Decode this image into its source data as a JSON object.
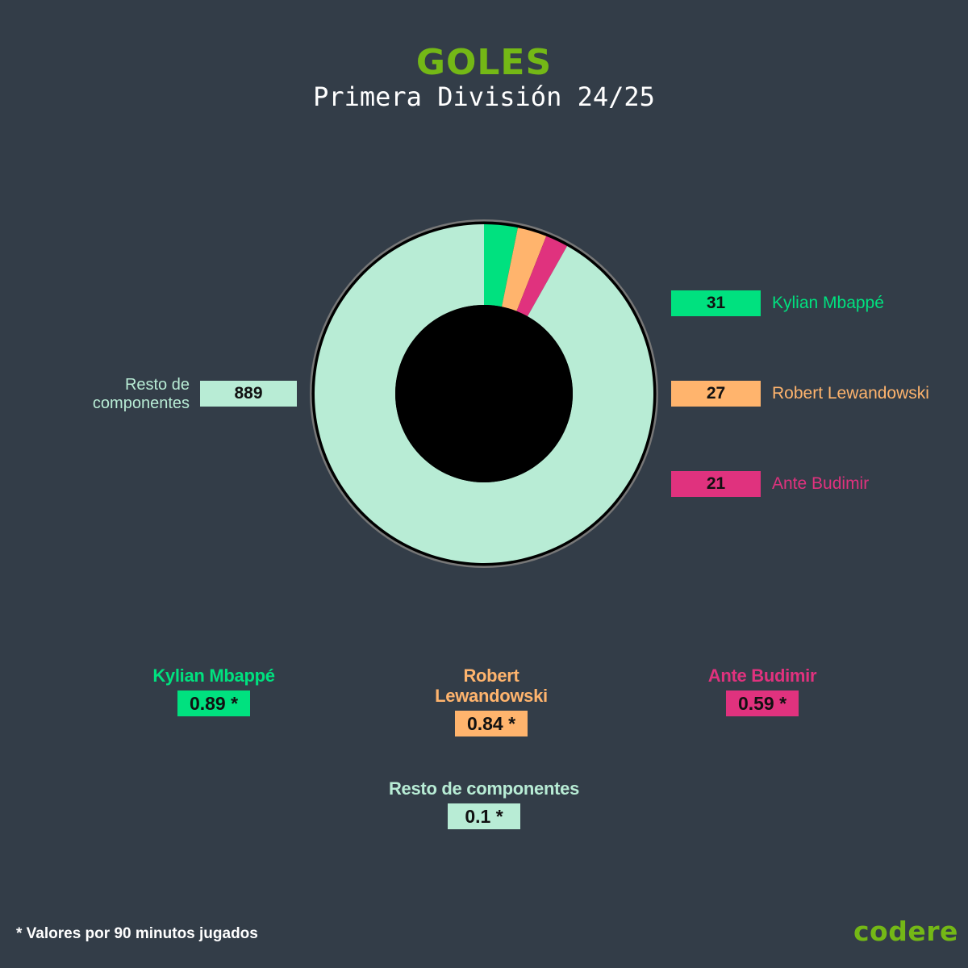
{
  "header": {
    "title": "GOLES",
    "subtitle": "Primera División 24/25"
  },
  "chart_data": {
    "type": "pie",
    "style": "donut",
    "categories": [
      "Kylian Mbappé",
      "Robert Lewandowski",
      "Ante Budimir",
      "Resto de componentes"
    ],
    "values": [
      31,
      27,
      21,
      889
    ],
    "colors": [
      "#00e17f",
      "#ffb46d",
      "#e0327e",
      "#b8ecd5"
    ],
    "value_labels": [
      "31",
      "27",
      "21",
      "889"
    ]
  },
  "stats": {
    "per90": [
      {
        "name": "Kylian Mbappé",
        "value": "0.89 *",
        "color": "#00e17f"
      },
      {
        "name": "Robert Lewandowski",
        "value": "0.84 *",
        "color": "#ffb46d"
      },
      {
        "name": "Ante Budimir",
        "value": "0.59 *",
        "color": "#e0327e"
      },
      {
        "name": "Resto de componentes",
        "value": "0.1 *",
        "color": "#b8ecd5"
      }
    ]
  },
  "footer": {
    "note": "* Valores por 90 minutos jugados",
    "logo": "codere",
    "logo_color": "#74b816"
  }
}
